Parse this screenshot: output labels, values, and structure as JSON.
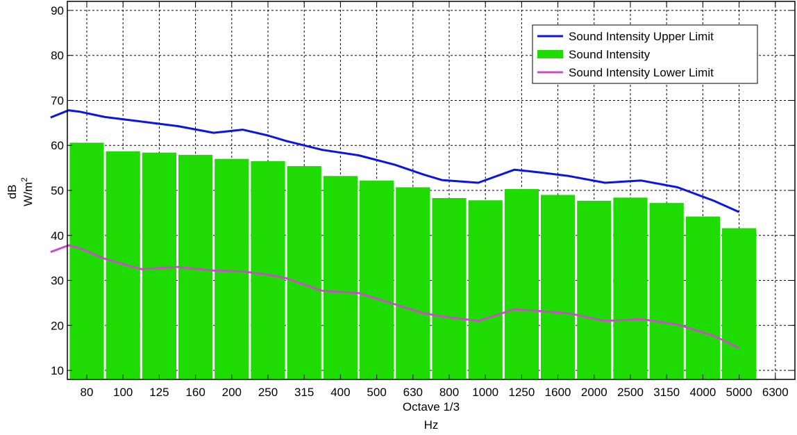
{
  "chart_data": {
    "type": "bar",
    "categories": [
      "80",
      "100",
      "125",
      "160",
      "200",
      "250",
      "315",
      "400",
      "500",
      "630",
      "800",
      "1000",
      "1250",
      "1600",
      "2000",
      "2500",
      "3150",
      "4000",
      "5000",
      "6300"
    ],
    "series": [
      {
        "name": "Sound Intensity Upper Limit",
        "kind": "line",
        "color": "#0a14e6",
        "points": [
          [
            0.0,
            66.2
          ],
          [
            0.5,
            67.8
          ],
          [
            0.8,
            67.5
          ],
          [
            1.5,
            66.3
          ],
          [
            2.5,
            65.3
          ],
          [
            3.5,
            64.3
          ],
          [
            4.5,
            62.8
          ],
          [
            5.3,
            63.5
          ],
          [
            6.0,
            62.2
          ],
          [
            6.5,
            61.0
          ],
          [
            7.5,
            59.0
          ],
          [
            8.5,
            57.8
          ],
          [
            9.5,
            55.7
          ],
          [
            10.3,
            53.5
          ],
          [
            10.8,
            52.3
          ],
          [
            11.8,
            51.7
          ],
          [
            12.8,
            54.6
          ],
          [
            13.5,
            54.0
          ],
          [
            14.3,
            53.2
          ],
          [
            15.3,
            51.7
          ],
          [
            16.3,
            52.2
          ],
          [
            17.3,
            50.7
          ],
          [
            18.3,
            47.7
          ],
          [
            19.0,
            45.2
          ]
        ]
      },
      {
        "name": "Sound Intensity",
        "kind": "bar",
        "color": "#1edc02",
        "values": [
          60.6,
          58.7,
          58.4,
          57.9,
          57.0,
          56.5,
          55.4,
          53.2,
          52.2,
          50.7,
          48.3,
          47.8,
          50.3,
          49.0,
          47.7,
          48.4,
          47.2,
          44.2,
          41.6,
          null
        ]
      },
      {
        "name": "Sound Intensity Lower Limit",
        "kind": "line",
        "color": "#c84ec8",
        "points": [
          [
            0.0,
            36.3
          ],
          [
            0.5,
            37.8
          ],
          [
            0.8,
            37.2
          ],
          [
            1.5,
            34.8
          ],
          [
            2.5,
            32.5
          ],
          [
            3.5,
            33.0
          ],
          [
            4.5,
            32.2
          ],
          [
            5.3,
            32.0
          ],
          [
            6.0,
            31.3
          ],
          [
            6.5,
            30.5
          ],
          [
            7.5,
            27.7
          ],
          [
            8.5,
            27.2
          ],
          [
            9.5,
            24.7
          ],
          [
            10.3,
            22.7
          ],
          [
            10.8,
            22.0
          ],
          [
            11.8,
            21.0
          ],
          [
            12.8,
            23.6
          ],
          [
            13.5,
            23.2
          ],
          [
            14.3,
            22.7
          ],
          [
            15.3,
            21.0
          ],
          [
            16.3,
            21.4
          ],
          [
            17.3,
            20.2
          ],
          [
            18.3,
            17.7
          ],
          [
            19.0,
            15.0
          ]
        ]
      }
    ],
    "yticks": [
      10,
      20,
      30,
      40,
      50,
      60,
      70,
      80,
      90
    ],
    "ylim": [
      8,
      92
    ],
    "xlabel": [
      "Octave 1/3",
      "Hz"
    ],
    "ylabel": [
      "dB",
      "W/m",
      "2"
    ],
    "grid": true,
    "legend_position": "top-right"
  }
}
